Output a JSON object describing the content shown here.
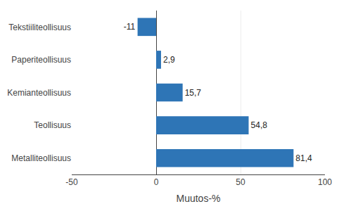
{
  "chart_data": {
    "type": "bar",
    "orientation": "horizontal",
    "categories": [
      "Tekstiiliteollisuus",
      "Paperiteollisuus",
      "Kemianteollisuus",
      "Teollisuus",
      "Metalliteollisuus"
    ],
    "values": [
      -11,
      2.9,
      15.7,
      54.8,
      81.4
    ],
    "value_labels": [
      "-11",
      "2,9",
      "15,7",
      "54,8",
      "81,4"
    ],
    "data_labels": true,
    "color": "#2e75b6",
    "xlabel": "Muutos-%",
    "xlim": [
      -50,
      100
    ],
    "xticks": [
      -50,
      0,
      50,
      100
    ],
    "grid": true
  }
}
